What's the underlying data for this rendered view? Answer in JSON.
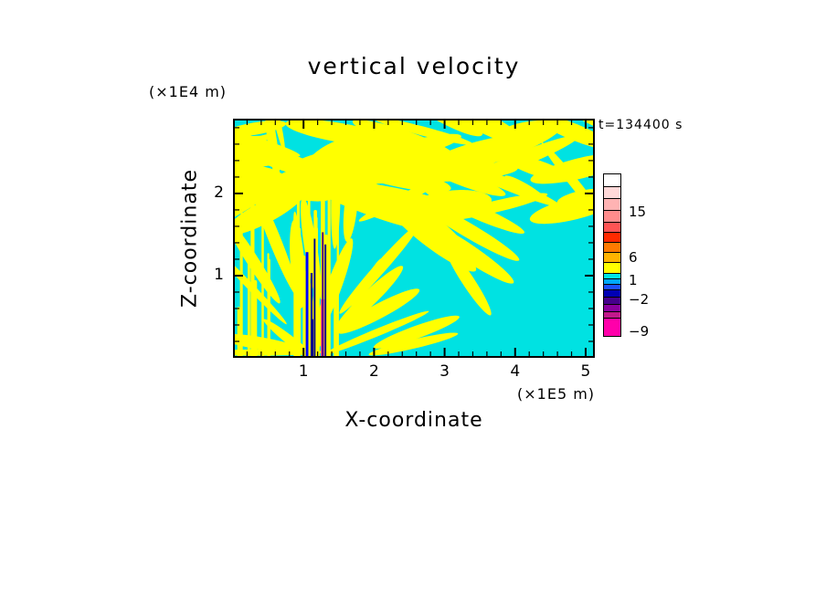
{
  "labels": {
    "title": "vertical velocity",
    "xlabel": "X-coordinate",
    "ylabel": "Z-coordinate",
    "x_unit": "(×1E5 m)",
    "y_unit": "(×1E4 m)",
    "time": "t=134400 s"
  },
  "chart_data": {
    "type": "heatmap",
    "title": "vertical velocity",
    "xlabel": "X-coordinate",
    "ylabel": "Z-coordinate",
    "x_unit": "×1E5 m",
    "y_unit": "×1E4 m",
    "x_range": [
      0,
      5.13
    ],
    "y_range": [
      0,
      2.91
    ],
    "x_ticks": [
      1,
      2,
      3,
      4,
      5
    ],
    "y_ticks": [
      1,
      2
    ],
    "x_minor_step": 0.2,
    "y_minor_step": 0.2,
    "time_annotation": "t=134400 s",
    "grid": false,
    "legend_position": "right-colorbar",
    "colorbar_levels": [
      15,
      6,
      1,
      -2,
      -9
    ],
    "field_summary": "2-D vertical-velocity cross-section: cyan background (values roughly -2 to 1) filling the domain, with yellow wave-crest filaments (values roughly 1 to 6) radiating fan-like from a source near x=1.1x1E5 m at the lower boundary; thin intense red/blue/magenta up- and downdraft streaks at the source; dense yellow banding across the upper part of the domain.",
    "colorbar": {
      "segments": [
        {
          "color": "#ffffff",
          "h": 15
        },
        {
          "color": "#ffd9d9",
          "h": 14
        },
        {
          "color": "#ffb3b3",
          "h": 14
        },
        {
          "color": "#ff8c8c",
          "h": 14
        },
        {
          "color": "#ff5454",
          "h": 12
        },
        {
          "color": "#ff2a00",
          "h": 12
        },
        {
          "color": "#ff7a00",
          "h": 12
        },
        {
          "color": "#ffb400",
          "h": 12
        },
        {
          "color": "#ffff00",
          "h": 13
        },
        {
          "color": "#00e6e6",
          "h": 7
        },
        {
          "color": "#00a8ff",
          "h": 7
        },
        {
          "color": "#1e50ff",
          "h": 7
        },
        {
          "color": "#0000b4",
          "h": 9
        },
        {
          "color": "#46008c",
          "h": 9
        },
        {
          "color": "#8c00a0",
          "h": 9
        },
        {
          "color": "#c2188c",
          "h": 8
        },
        {
          "color": "#ff00aa",
          "h": 21
        }
      ],
      "labels": [
        {
          "text": "15",
          "after": 3
        },
        {
          "text": "6",
          "after": 7
        },
        {
          "text": "1",
          "after": 9
        },
        {
          "text": "−2",
          "after": 12
        },
        {
          "text": "−9",
          "after": 16
        }
      ]
    },
    "pattern": {
      "seed": 42,
      "background": "#00e2e2",
      "blob_color": "#ffff00",
      "blob_count": 115,
      "top_band_frac": 0.35,
      "fan_deg": 84,
      "r_min": 25,
      "r_max": 540,
      "source_frac_x": 0.225,
      "near_streaks": {
        "count": 16,
        "spread": 32,
        "min_h": 60,
        "max_h": 200
      },
      "dark_streaks": {
        "count": 7,
        "spread": 13,
        "min_h": 40,
        "max_h": 150,
        "colors": [
          "#00008b",
          "#c00000",
          "#ff00aa",
          "#4b0082",
          "#0000ff"
        ]
      },
      "edge_streaks": {
        "count": 9,
        "x_max": 46,
        "min_h": 40,
        "max_h": 170
      }
    }
  }
}
